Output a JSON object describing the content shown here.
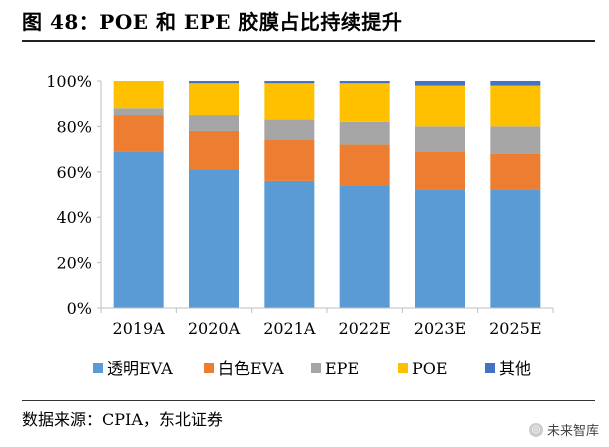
{
  "figure_title": "图 48：POE 和 EPE 胶膜占比持续提升",
  "source_text": "数据来源：CPIA，东北证券",
  "watermark_text": "未来智库",
  "chart_data": {
    "type": "bar",
    "stacked": true,
    "title": "图 48：POE 和 EPE 胶膜占比持续提升",
    "xlabel": "",
    "ylabel": "",
    "ylim": [
      0,
      100
    ],
    "yticks": [
      0,
      20,
      40,
      60,
      80,
      100
    ],
    "ytick_labels": [
      "0%",
      "20%",
      "40%",
      "60%",
      "80%",
      "100%"
    ],
    "categories": [
      "2019A",
      "2020A",
      "2021A",
      "2022E",
      "2023E",
      "2025E"
    ],
    "series": [
      {
        "name": "透明EVA",
        "color": "#5B9BD5",
        "values": [
          69,
          61,
          56,
          54,
          52,
          52
        ]
      },
      {
        "name": "白色EVA",
        "color": "#ED7D31",
        "values": [
          16,
          17,
          18,
          18,
          17,
          16
        ]
      },
      {
        "name": "EPE",
        "color": "#A5A5A5",
        "values": [
          3,
          7,
          9,
          10,
          11,
          12
        ]
      },
      {
        "name": "POE",
        "color": "#FFC000",
        "values": [
          12,
          14,
          16,
          17,
          18,
          18
        ]
      },
      {
        "name": "其他",
        "color": "#4472C4",
        "values": [
          0,
          1,
          1,
          1,
          2,
          2
        ]
      }
    ],
    "grid": false,
    "legend_position": "bottom"
  }
}
